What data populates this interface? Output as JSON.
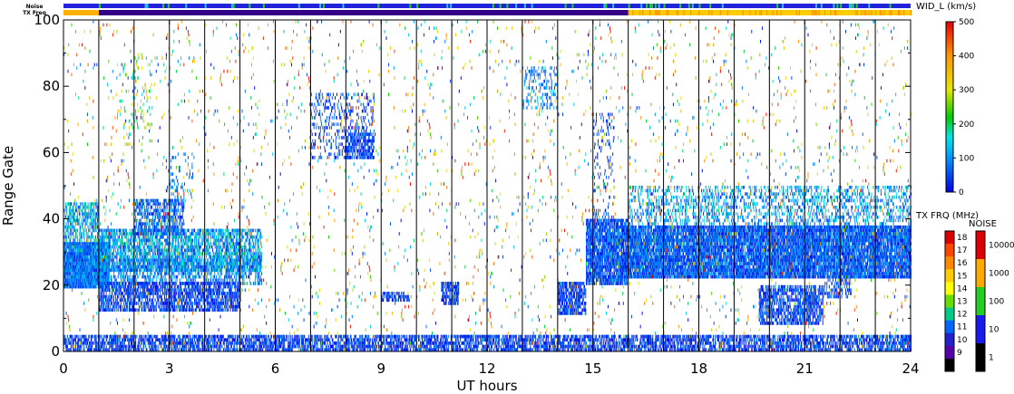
{
  "chart_data": {
    "type": "heatmap",
    "title": "",
    "xlabel": "UT hours",
    "ylabel": "Range Gate",
    "xlim": [
      0,
      24
    ],
    "ylim": [
      0,
      100
    ],
    "x_ticks": [
      "0",
      "3",
      "6",
      "9",
      "12",
      "15",
      "18",
      "21",
      "24"
    ],
    "y_ticks": [
      "0",
      "20",
      "40",
      "60",
      "80",
      "100"
    ],
    "x_gridlines_hours": [
      1,
      2,
      3,
      4,
      5,
      6,
      7,
      8,
      9,
      10,
      11,
      12,
      13,
      14,
      15,
      16,
      17,
      18,
      19,
      20,
      21,
      22,
      23
    ],
    "top_strips": [
      {
        "label": "Noise",
        "hint": "mostly blue with scattered green",
        "base_color": "#2222dd"
      },
      {
        "label": "TX Freq",
        "segments": [
          {
            "from": 0,
            "to": 1,
            "color": "#ffb000"
          },
          {
            "from": 1,
            "to": 16,
            "color": "#330088"
          },
          {
            "from": 16,
            "to": 24,
            "color": "#ffcc00"
          }
        ]
      }
    ],
    "colorbars": [
      {
        "title": "WID_L (km/s)",
        "min": 0,
        "max": 500,
        "tick_labels": [
          "500",
          "400",
          "300",
          "200",
          "100",
          "0"
        ]
      },
      {
        "title": "TX FRQ (MHz)",
        "tick_labels": [
          "18",
          "17",
          "16",
          "15",
          "14",
          "13",
          "12",
          "11",
          "10",
          "9"
        ],
        "colors": [
          "#dd0000",
          "#ff4400",
          "#ff8800",
          "#ffcc00",
          "#ffff00",
          "#66dd00",
          "#00cc88",
          "#0066ff",
          "#2222cc",
          "#5500aa",
          "#000000"
        ]
      },
      {
        "title": "NOISE",
        "tick_labels": [
          "10000",
          "1000",
          "100",
          "10",
          "1"
        ],
        "colors": [
          "#dd0000",
          "#ffaa00",
          "#22cc22",
          "#1a1aee",
          "#000000"
        ]
      }
    ],
    "echo_regions": [
      {
        "t0": 0.0,
        "t1": 1.3,
        "g0": 19,
        "g1": 33,
        "density": 0.95,
        "w0": 15,
        "w1": 140
      },
      {
        "t0": 0.0,
        "t1": 1.0,
        "g0": 33,
        "g1": 45,
        "density": 0.45,
        "w0": 30,
        "w1": 200
      },
      {
        "t0": 1.0,
        "t1": 5.6,
        "g0": 24,
        "g1": 37,
        "density": 0.55,
        "w0": 20,
        "w1": 200
      },
      {
        "t0": 1.0,
        "t1": 5.6,
        "g0": 20,
        "g1": 28,
        "density": 0.35,
        "w0": 20,
        "w1": 150
      },
      {
        "t0": 1.0,
        "t1": 5.0,
        "g0": 12,
        "g1": 21,
        "density": 0.55,
        "w0": 0,
        "w1": 80
      },
      {
        "t0": 2.0,
        "t1": 3.4,
        "g0": 35,
        "g1": 46,
        "density": 0.45,
        "w0": 10,
        "w1": 120
      },
      {
        "t0": 2.9,
        "t1": 3.7,
        "g0": 45,
        "g1": 60,
        "density": 0.12,
        "w0": 20,
        "w1": 120
      },
      {
        "t0": 1.6,
        "t1": 2.5,
        "g0": 62,
        "g1": 90,
        "density": 0.05,
        "w0": 120,
        "w1": 360
      },
      {
        "t0": 0.0,
        "t1": 24.0,
        "g0": 0,
        "g1": 5,
        "density": 0.55,
        "w0": 0,
        "w1": 80
      },
      {
        "t0": 7.0,
        "t1": 8.8,
        "g0": 58,
        "g1": 78,
        "density": 0.18,
        "w0": 0,
        "w1": 90
      },
      {
        "t0": 8.0,
        "t1": 8.8,
        "g0": 58,
        "g1": 66,
        "density": 0.5,
        "w0": 0,
        "w1": 80
      },
      {
        "t0": 13.0,
        "t1": 14.0,
        "g0": 73,
        "g1": 86,
        "density": 0.18,
        "w0": 20,
        "w1": 150
      },
      {
        "t0": 14.0,
        "t1": 14.8,
        "g0": 11,
        "g1": 21,
        "density": 0.6,
        "w0": 0,
        "w1": 80
      },
      {
        "t0": 14.8,
        "t1": 16.0,
        "g0": 20,
        "g1": 40,
        "density": 0.75,
        "w0": 0,
        "w1": 110
      },
      {
        "t0": 15.0,
        "t1": 15.6,
        "g0": 40,
        "g1": 72,
        "density": 0.12,
        "w0": 0,
        "w1": 80
      },
      {
        "t0": 16.0,
        "t1": 24.0,
        "g0": 22,
        "g1": 38,
        "density": 0.8,
        "w0": 0,
        "w1": 120
      },
      {
        "t0": 16.0,
        "t1": 24.0,
        "g0": 38,
        "g1": 50,
        "density": 0.25,
        "w0": 20,
        "w1": 180
      },
      {
        "t0": 19.7,
        "t1": 21.5,
        "g0": 8,
        "g1": 20,
        "density": 0.55,
        "w0": 0,
        "w1": 90
      },
      {
        "t0": 21.5,
        "t1": 22.3,
        "g0": 16,
        "g1": 22,
        "density": 0.3,
        "w0": 0,
        "w1": 80
      },
      {
        "t0": 9.0,
        "t1": 9.8,
        "g0": 15,
        "g1": 18,
        "density": 0.5,
        "w0": 0,
        "w1": 80
      },
      {
        "t0": 10.7,
        "t1": 11.2,
        "g0": 14,
        "g1": 21,
        "density": 0.6,
        "w0": 0,
        "w1": 80
      },
      {
        "t0": 0.0,
        "t1": 24.0,
        "g0": 0,
        "g1": 100,
        "density": 0.02,
        "w0": 0,
        "w1": 500
      }
    ]
  }
}
